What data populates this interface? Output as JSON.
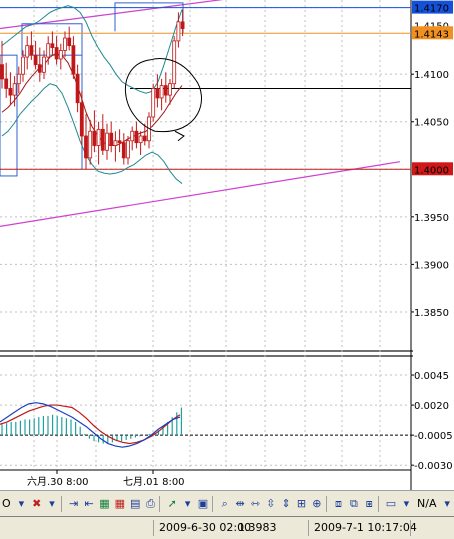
{
  "chart_data": [
    {
      "type": "line",
      "panel": "price",
      "y_ticks": [
        "1.4170",
        "1.4150",
        "1.4143",
        "1.4100",
        "1.4050",
        "1.4000",
        "1.3950",
        "1.3900",
        "1.3850"
      ],
      "ylim": [
        1.381,
        1.4175
      ],
      "highlight_labels": [
        {
          "text": "1.4170",
          "color": "#1450d8"
        },
        {
          "text": "1.4143",
          "color": "#f09020"
        },
        {
          "text": "1.4000",
          "color": "#d01818"
        }
      ],
      "horizontal_levels": [
        {
          "value": 1.417,
          "color": "#1450d8"
        },
        {
          "value": 1.4143,
          "color": "#f09020"
        },
        {
          "value": 1.4085,
          "color": "#000000"
        },
        {
          "value": 1.4,
          "color": "#c01818"
        }
      ],
      "candles": [
        [
          1.411,
          1.4135,
          1.4085,
          1.4095
        ],
        [
          1.4095,
          1.4112,
          1.4075,
          1.4085
        ],
        [
          1.4085,
          1.4102,
          1.4068,
          1.4078
        ],
        [
          1.4078,
          1.4098,
          1.4066,
          1.409
        ],
        [
          1.409,
          1.4108,
          1.408,
          1.41
        ],
        [
          1.41,
          1.4125,
          1.4092,
          1.4118
        ],
        [
          1.4118,
          1.414,
          1.4105,
          1.413
        ],
        [
          1.413,
          1.4145,
          1.4115,
          1.412
        ],
        [
          1.412,
          1.4135,
          1.4105,
          1.411
        ],
        [
          1.411,
          1.4128,
          1.4092,
          1.4102
        ],
        [
          1.4102,
          1.4125,
          1.4095,
          1.4118
        ],
        [
          1.4118,
          1.414,
          1.411,
          1.4132
        ],
        [
          1.4132,
          1.4145,
          1.412,
          1.4128
        ],
        [
          1.4128,
          1.414,
          1.411,
          1.4116
        ],
        [
          1.4116,
          1.4132,
          1.4105,
          1.4125
        ],
        [
          1.4125,
          1.4145,
          1.4118,
          1.4138
        ],
        [
          1.4138,
          1.415,
          1.4125,
          1.413
        ],
        [
          1.413,
          1.414,
          1.4095,
          1.41
        ],
        [
          1.41,
          1.411,
          1.406,
          1.407
        ],
        [
          1.407,
          1.4082,
          1.4025,
          1.4035
        ],
        [
          1.4035,
          1.4058,
          1.4,
          1.4012
        ],
        [
          1.4012,
          1.4052,
          1.4005,
          1.404
        ],
        [
          1.404,
          1.4062,
          1.4018,
          1.4025
        ],
        [
          1.4025,
          1.405,
          1.4005,
          1.4042
        ],
        [
          1.4042,
          1.4058,
          1.4015,
          1.402
        ],
        [
          1.402,
          1.4048,
          1.401,
          1.4038
        ],
        [
          1.4038,
          1.405,
          1.4018,
          1.4025
        ],
        [
          1.4025,
          1.404,
          1.4008,
          1.403
        ],
        [
          1.403,
          1.4042,
          1.4018,
          1.4028
        ],
        [
          1.4028,
          1.4038,
          1.4005,
          1.4012
        ],
        [
          1.4012,
          1.4035,
          1.4005,
          1.403
        ],
        [
          1.403,
          1.4045,
          1.402,
          1.404
        ],
        [
          1.404,
          1.405,
          1.4022,
          1.4028
        ],
        [
          1.4028,
          1.404,
          1.4015,
          1.4035
        ],
        [
          1.4035,
          1.4048,
          1.4025,
          1.403
        ],
        [
          1.403,
          1.406,
          1.4022,
          1.4055
        ],
        [
          1.4055,
          1.409,
          1.405,
          1.4085
        ],
        [
          1.4085,
          1.41,
          1.4065,
          1.4075
        ],
        [
          1.4075,
          1.4095,
          1.4062,
          1.4088
        ],
        [
          1.4088,
          1.4102,
          1.407,
          1.4078
        ],
        [
          1.4078,
          1.4095,
          1.4068,
          1.409
        ],
        [
          1.409,
          1.414,
          1.4085,
          1.4135
        ],
        [
          1.4135,
          1.4165,
          1.4128,
          1.4155
        ],
        [
          1.4155,
          1.4168,
          1.414,
          1.4148
        ]
      ],
      "bollinger_upper": [
        1.413,
        1.4135,
        1.414,
        1.4145,
        1.415,
        1.4152,
        1.4155,
        1.416,
        1.4165,
        1.4168,
        1.417,
        1.4172,
        1.417,
        1.4165,
        1.4155,
        1.414,
        1.4128,
        1.4118,
        1.411,
        1.41,
        1.4092,
        1.4088,
        1.4085,
        1.4082,
        1.408,
        1.4082,
        1.4092,
        1.411,
        1.413,
        1.415,
        1.4168
      ],
      "bollinger_lower": [
        1.4035,
        1.404,
        1.4048,
        1.4058,
        1.4065,
        1.4072,
        1.4078,
        1.4085,
        1.409,
        1.4088,
        1.408,
        1.4065,
        1.4048,
        1.403,
        1.4015,
        1.4005,
        1.3998,
        1.3996,
        1.3995,
        1.3996,
        1.3998,
        1.4002,
        1.4005,
        1.401,
        1.4015,
        1.4018,
        1.4015,
        1.4008,
        1.3998,
        1.399,
        1.3985
      ],
      "moving_average": [
        1.406,
        1.4065,
        1.4072,
        1.408,
        1.409,
        1.4098,
        1.4105,
        1.411,
        1.4118,
        1.4122,
        1.412,
        1.4112,
        1.4098,
        1.408,
        1.406,
        1.4045,
        1.4035,
        1.4028,
        1.4025,
        1.4025,
        1.4028,
        1.4032,
        1.4035,
        1.4038,
        1.404,
        1.4045,
        1.4052,
        1.406,
        1.407,
        1.408,
        1.4088
      ],
      "trend_line_upper": [
        [
          0,
          1.4148
        ],
        [
          1,
          1.4155
        ],
        [
          2,
          1.4162
        ],
        [
          3,
          1.4168
        ],
        [
          4,
          1.4174
        ],
        [
          5,
          1.418
        ]
      ],
      "trend_line_lower": [
        [
          0,
          1.394
        ],
        [
          1,
          1.395
        ],
        [
          2,
          1.396
        ],
        [
          3,
          1.397
        ],
        [
          4,
          1.398
        ],
        [
          5,
          1.399
        ],
        [
          6,
          1.4
        ],
        [
          7,
          1.4008
        ]
      ]
    },
    {
      "type": "bar",
      "panel": "oscillator",
      "y_ticks": [
        "0.0045",
        "0.0020",
        "-0.0005",
        "-0.0030"
      ],
      "ylim": [
        -0.0035,
        0.006
      ],
      "dashed_level": -0.0005,
      "histogram": [
        0.0004,
        0.0005,
        0.0006,
        0.0006,
        0.0007,
        0.0008,
        0.0008,
        0.0009,
        0.001,
        0.0011,
        0.0011,
        0.0012,
        0.0011,
        0.001,
        0.0009,
        0.0008,
        0.0006,
        0.0002,
        -0.0004,
        -0.0008,
        -0.001,
        -0.0011,
        -0.0012,
        -0.0012,
        -0.0011,
        -0.001,
        -0.001,
        -0.0009,
        -0.0008,
        -0.0007,
        -0.0006,
        -0.0005,
        -0.0004,
        -0.0003,
        -0.0001,
        0.0002,
        0.0006,
        0.001,
        0.0014,
        0.0018
      ],
      "signal_red": [
        0.0004,
        0.0006,
        0.0009,
        0.0012,
        0.0015,
        0.0017,
        0.0019,
        0.002,
        0.002,
        0.0019,
        0.0018,
        0.0014,
        0.0009,
        0.0003,
        -0.0002,
        -0.0006,
        -0.0009,
        -0.0011,
        -0.0012,
        -0.0011,
        -0.0009,
        -0.0006,
        -0.0002,
        0.0003,
        0.0008,
        0.0012
      ],
      "signal_blue": [
        0.0006,
        0.001,
        0.0014,
        0.0018,
        0.0021,
        0.0022,
        0.0021,
        0.0019,
        0.0016,
        0.0013,
        0.001,
        0.0006,
        0.0002,
        -0.0003,
        -0.0008,
        -0.0012,
        -0.0014,
        -0.0015,
        -0.0014,
        -0.0012,
        -0.0009,
        -0.0005,
        0.0,
        0.0004,
        0.0008,
        0.001
      ]
    }
  ],
  "x_axis": {
    "labels": [
      "六月.30 8:00",
      "七月.01 8:00"
    ]
  },
  "toolbar": {
    "na_label": "N/A"
  },
  "status": {
    "date1": "2009-6-30 02:00",
    "price1": "1.3983",
    "date2": "2009-7-1 10:17:04"
  }
}
